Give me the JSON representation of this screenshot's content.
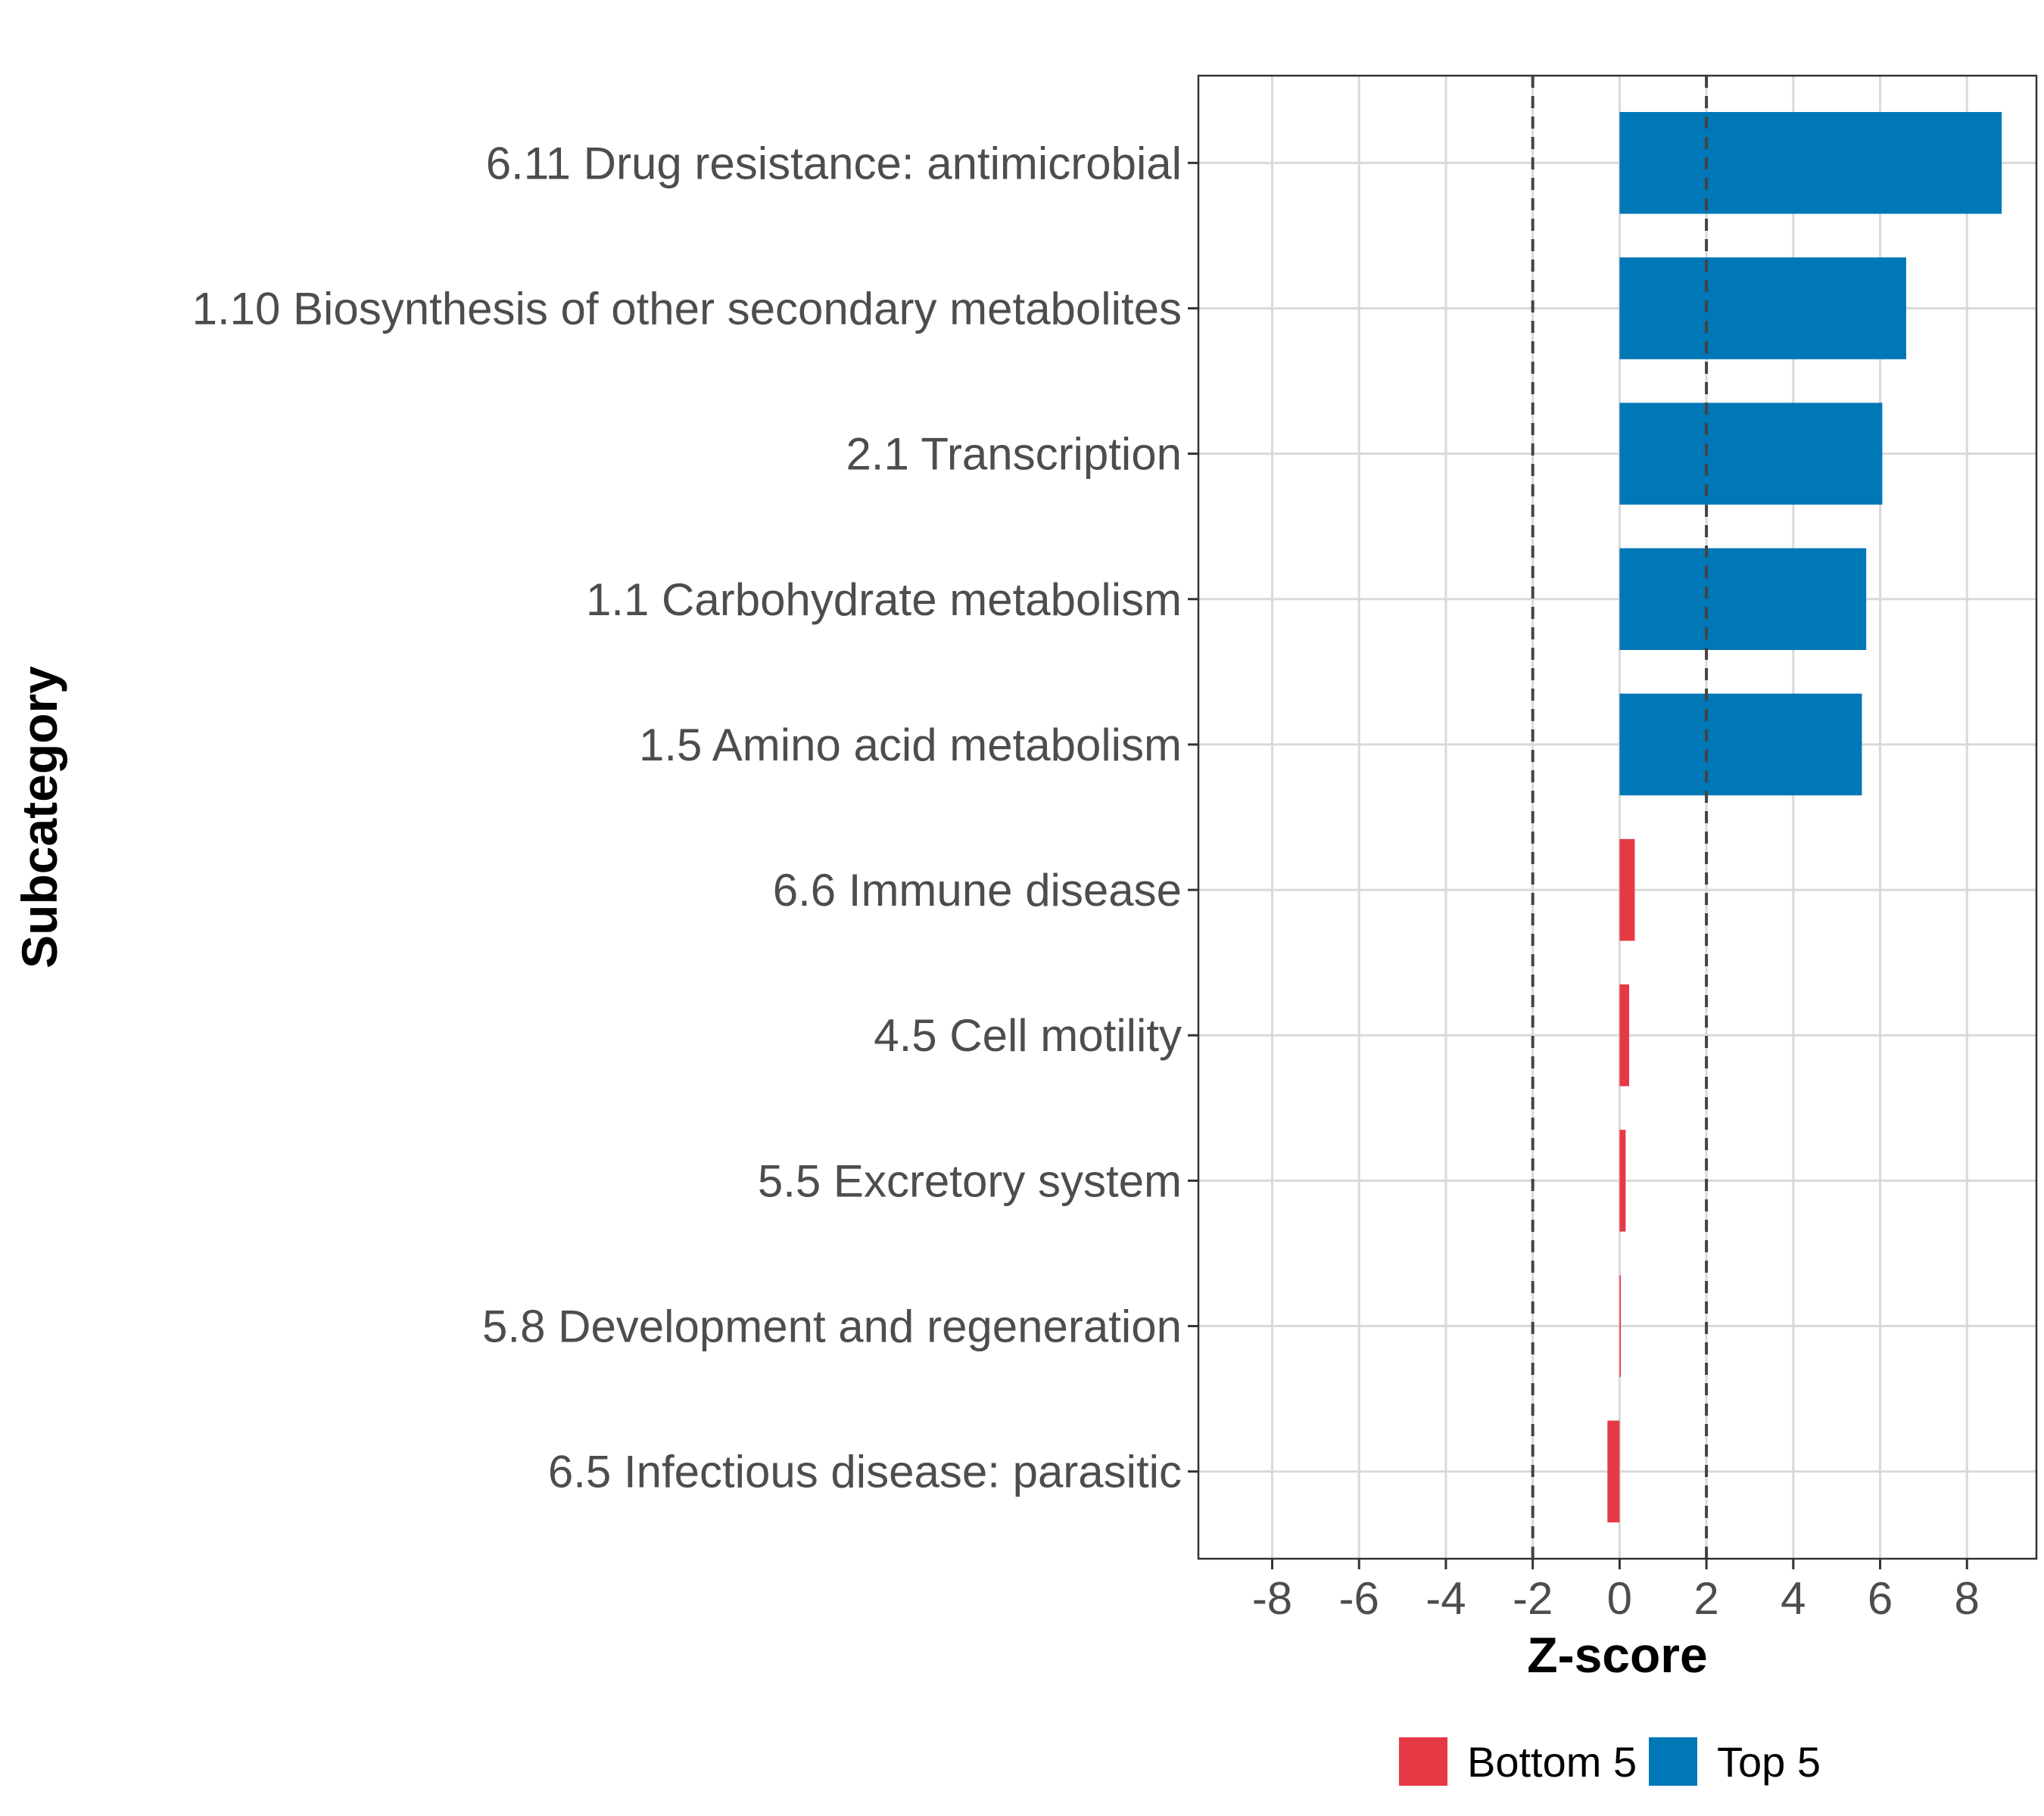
{
  "chart_data": {
    "type": "bar",
    "orientation": "horizontal",
    "title": "",
    "xlabel": "Z-score",
    "ylabel": "Subcategory",
    "xlim": [
      -9.7,
      9.6
    ],
    "x_ticks": [
      -8,
      -6,
      -4,
      -2,
      0,
      2,
      4,
      6,
      8
    ],
    "x_tick_labels": [
      "-8",
      "-6",
      "-4",
      "-2",
      "0",
      "2",
      "4",
      "6",
      "8"
    ],
    "reference_lines": [
      -2,
      2
    ],
    "grid": true,
    "categories": [
      "6.11 Drug resistance: antimicrobial",
      "1.10 Biosynthesis of other secondary metabolites",
      "2.1 Transcription",
      "1.1 Carbohydrate metabolism",
      "1.5 Amino acid metabolism",
      "6.6 Immune disease",
      "4.5 Cell motility",
      "5.5 Excretory system",
      "5.8 Development and regeneration",
      "6.5 Infectious disease: parasitic"
    ],
    "values": [
      8.8,
      6.6,
      6.05,
      5.68,
      5.58,
      0.35,
      0.22,
      0.14,
      0.03,
      -0.28
    ],
    "groups": [
      "Top 5",
      "Top 5",
      "Top 5",
      "Top 5",
      "Top 5",
      "Bottom 5",
      "Bottom 5",
      "Bottom 5",
      "Bottom 5",
      "Bottom 5"
    ],
    "legend": [
      {
        "name": "Bottom 5",
        "color": "#e63946"
      },
      {
        "name": "Top 5",
        "color": "#0077b6"
      }
    ],
    "legend_position": "bottom"
  }
}
